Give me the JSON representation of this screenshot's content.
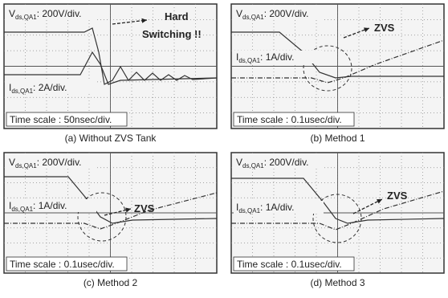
{
  "panels": [
    {
      "voltage": {
        "symbol": "V",
        "subscript": "ds,QA1",
        "scale": ": 200V/div."
      },
      "current": {
        "symbol": "I",
        "subscript": "ds,QA1",
        "scale": ": 2A/div."
      },
      "time_scale": "Time scale : 50nsec/div.",
      "annotation": [
        "Hard",
        "Switching !!"
      ],
      "caption": "(a) Without ZVS Tank"
    },
    {
      "voltage": {
        "symbol": "V",
        "subscript": "ds,QA1",
        "scale": ": 200V/div."
      },
      "current": {
        "symbol": "I",
        "subscript": "ds,QA1",
        "scale": ": 1A/div."
      },
      "time_scale": "Time scale : 0.1usec/div.",
      "annotation": [
        "ZVS"
      ],
      "caption": "(b) Method 1"
    },
    {
      "voltage": {
        "symbol": "V",
        "subscript": "ds,QA1",
        "scale": ": 200V/div."
      },
      "current": {
        "symbol": "I",
        "subscript": "ds,QA1",
        "scale": ": 1A/div."
      },
      "time_scale": "Time scale : 0.1usec/div.",
      "annotation": [
        "ZVS"
      ],
      "caption": "(c) Method 2"
    },
    {
      "voltage": {
        "symbol": "V",
        "subscript": "ds,QA1",
        "scale": ": 200V/div."
      },
      "current": {
        "symbol": "I",
        "subscript": "ds,QA1",
        "scale": ": 1A/div."
      },
      "time_scale": "Time scale : 0.1usec/div.",
      "annotation": [
        "ZVS"
      ],
      "caption": "(d) Method 3"
    }
  ]
}
